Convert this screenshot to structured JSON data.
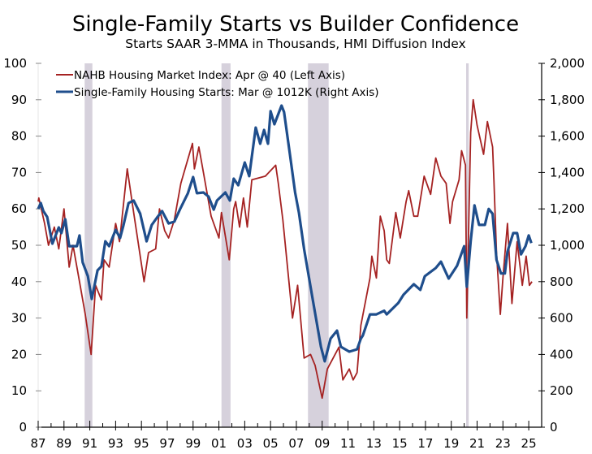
{
  "chart_data": {
    "type": "line",
    "title": "Single-Family Starts vs Builder Confidence",
    "subtitle": "Starts SAAR 3-MMA in Thousands, HMI Diffusion Index",
    "xlim": [
      1987,
      2026
    ],
    "ylim_left": [
      0,
      100
    ],
    "ylim_right": [
      0,
      2000
    ],
    "left_ticks": [
      "0",
      "10",
      "20",
      "30",
      "40",
      "50",
      "60",
      "70",
      "80",
      "90",
      "100"
    ],
    "left_tick_values": [
      0,
      10,
      20,
      30,
      40,
      50,
      60,
      70,
      80,
      90,
      100
    ],
    "right_ticks": [
      "0",
      "200",
      "400",
      "600",
      "800",
      "1,000",
      "1,200",
      "1,400",
      "1,600",
      "1,800",
      "2,000"
    ],
    "right_tick_values": [
      0,
      200,
      400,
      600,
      800,
      1000,
      1200,
      1400,
      1600,
      1800,
      2000
    ],
    "x_ticks": [
      "87",
      "89",
      "91",
      "93",
      "95",
      "97",
      "99",
      "01",
      "03",
      "05",
      "07",
      "09",
      "11",
      "13",
      "15",
      "17",
      "19",
      "21",
      "23",
      "25"
    ],
    "x_tick_values": [
      1987,
      1989,
      1991,
      1993,
      1995,
      1997,
      1999,
      2001,
      2003,
      2005,
      2007,
      2009,
      2011,
      2013,
      2015,
      2017,
      2019,
      2021,
      2023,
      2025
    ],
    "legend_position": "top-left",
    "grid": false,
    "recessions": [
      [
        1990.6,
        1991.2
      ],
      [
        2001.2,
        2001.9
      ],
      [
        2007.9,
        2009.5
      ],
      [
        2020.15,
        2020.35
      ]
    ],
    "colors": {
      "hmi": "#a52222",
      "starts": "#1f4e8c",
      "recession": "#d6d1dc",
      "axis": "#000000"
    },
    "series": [
      {
        "name": "NAHB Housing Market Index: Apr @ 40 (Left Axis)",
        "axis": "left",
        "x": [
          1987.0,
          1987.05,
          1987.5,
          1987.8,
          1988.25,
          1988.6,
          1989.0,
          1989.4,
          1989.7,
          1990.2,
          1990.65,
          1991.1,
          1991.45,
          1991.9,
          1992.1,
          1992.5,
          1993.0,
          1993.3,
          1993.9,
          1994.4,
          1995.2,
          1995.55,
          1996.1,
          1996.4,
          1996.8,
          1997.1,
          1997.55,
          1998.05,
          1998.95,
          1999.1,
          1999.45,
          1999.8,
          2000.4,
          2001.0,
          2001.2,
          2001.8,
          2002.15,
          2002.3,
          2002.6,
          2002.9,
          2003.2,
          2003.55,
          2004.6,
          2005.4,
          2005.6,
          2005.95,
          2006.7,
          2007.1,
          2007.6,
          2008.1,
          2008.45,
          2009.0,
          2009.4,
          2010.3,
          2010.6,
          2011.1,
          2011.4,
          2011.7,
          2012.0,
          2012.7,
          2012.85,
          2013.2,
          2013.5,
          2013.8,
          2014.0,
          2014.2,
          2014.7,
          2015.05,
          2015.5,
          2015.7,
          2016.1,
          2016.4,
          2016.9,
          2017.4,
          2017.8,
          2018.2,
          2018.6,
          2018.9,
          2019.1,
          2019.6,
          2019.8,
          2020.1,
          2020.2,
          2020.5,
          2020.7,
          2021.0,
          2021.5,
          2021.8,
          2022.2,
          2022.3,
          2022.5,
          2022.8,
          2023.0,
          2023.35,
          2023.7,
          2024.1,
          2024.5,
          2024.8,
          2025.05,
          2025.25
        ],
        "values": [
          62,
          63,
          56,
          50,
          55,
          49,
          60,
          44,
          50,
          40,
          31,
          20,
          39,
          35,
          46,
          44,
          56,
          51,
          71,
          59,
          40,
          48,
          49,
          60,
          54,
          52,
          57,
          67,
          78,
          71,
          77,
          70,
          58,
          52,
          59,
          46,
          60,
          62,
          55,
          63,
          55,
          68,
          69,
          72,
          67,
          57,
          30,
          39,
          19,
          20,
          17,
          8,
          16,
          22,
          13,
          16,
          13,
          15,
          28,
          41,
          47,
          41,
          58,
          54,
          46,
          45,
          59,
          52,
          62,
          65,
          58,
          58,
          69,
          64,
          74,
          69,
          67,
          56,
          62,
          68,
          76,
          72,
          30,
          81,
          90,
          83,
          75,
          84,
          77,
          68,
          48,
          31,
          41,
          56,
          34,
          51,
          39,
          47,
          39,
          40
        ]
      },
      {
        "name": "Single-Family Housing Starts: Mar @ 1012K (Right Axis)",
        "axis": "right",
        "x": [
          1987.0,
          1987.2,
          1987.4,
          1987.7,
          1988.1,
          1988.6,
          1988.8,
          1989.1,
          1989.4,
          1990.0,
          1990.2,
          1990.45,
          1990.85,
          1991.15,
          1991.6,
          1991.9,
          1992.2,
          1992.5,
          1993.0,
          1993.35,
          1993.6,
          1994.0,
          1994.4,
          1994.9,
          1995.4,
          1995.8,
          1996.2,
          1996.6,
          1997.1,
          1997.55,
          1998.0,
          1998.6,
          1999.0,
          1999.3,
          1999.8,
          2000.2,
          2000.6,
          2000.85,
          2001.5,
          2001.85,
          2002.15,
          2002.5,
          2003.0,
          2003.35,
          2003.85,
          2004.2,
          2004.5,
          2004.8,
          2005.0,
          2005.3,
          2005.85,
          2006.05,
          2006.5,
          2006.9,
          2007.2,
          2007.6,
          2008.25,
          2008.9,
          2009.2,
          2009.65,
          2010.15,
          2010.45,
          2011.1,
          2011.7,
          2012.0,
          2012.15,
          2012.7,
          2013.2,
          2013.8,
          2014.0,
          2014.9,
          2015.3,
          2016.1,
          2016.6,
          2016.95,
          2017.8,
          2018.2,
          2018.8,
          2019.45,
          2020.0,
          2020.2,
          2020.5,
          2020.8,
          2021.15,
          2021.6,
          2021.9,
          2022.2,
          2022.5,
          2022.85,
          2023.15,
          2023.35,
          2023.8,
          2024.1,
          2024.4,
          2024.75,
          2025.0,
          2025.2
        ],
        "values": [
          1200,
          1232,
          1188,
          1156,
          1009,
          1098,
          1067,
          1143,
          995,
          995,
          1054,
          906,
          830,
          705,
          862,
          884,
          1022,
          995,
          1085,
          1040,
          1107,
          1232,
          1246,
          1174,
          1022,
          1112,
          1152,
          1188,
          1120,
          1130,
          1200,
          1286,
          1375,
          1286,
          1290,
          1268,
          1196,
          1246,
          1290,
          1246,
          1366,
          1330,
          1455,
          1380,
          1647,
          1558,
          1634,
          1558,
          1737,
          1665,
          1768,
          1732,
          1500,
          1290,
          1179,
          978,
          710,
          442,
          362,
          487,
          531,
          442,
          415,
          428,
          487,
          504,
          620,
          620,
          640,
          620,
          683,
          728,
          786,
          755,
          830,
          875,
          910,
          817,
          888,
          995,
          772,
          1022,
          1219,
          1112,
          1112,
          1200,
          1173,
          920,
          845,
          845,
          965,
          1067,
          1067,
          950,
          995,
          1054,
          1012
        ]
      }
    ]
  }
}
